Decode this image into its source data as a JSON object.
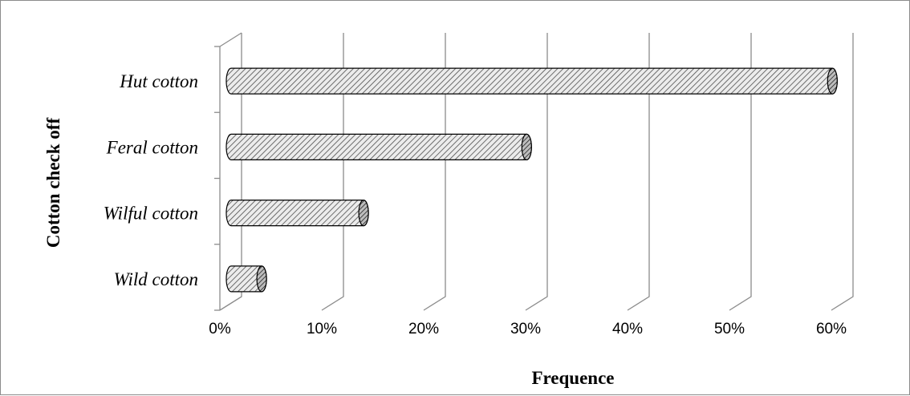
{
  "chart_data": {
    "type": "bar",
    "orientation": "horizontal",
    "style": "3d-cylinder",
    "categories": [
      "Wild cotton",
      "Wilful cotton",
      "Feral cotton",
      "Hut cotton"
    ],
    "values": [
      3,
      13,
      29,
      59
    ],
    "title": "",
    "xlabel": "Frequence",
    "ylabel": "Cotton check off",
    "xlim": [
      0,
      60
    ],
    "xticks": [
      "0%",
      "10%",
      "20%",
      "30%",
      "40%",
      "50%",
      "60%"
    ],
    "grid": true,
    "legend": "none",
    "colors": {
      "bar_fill": "#d6d6d6",
      "bar_edge": "#000000",
      "grid": "#8c8c8c"
    }
  }
}
